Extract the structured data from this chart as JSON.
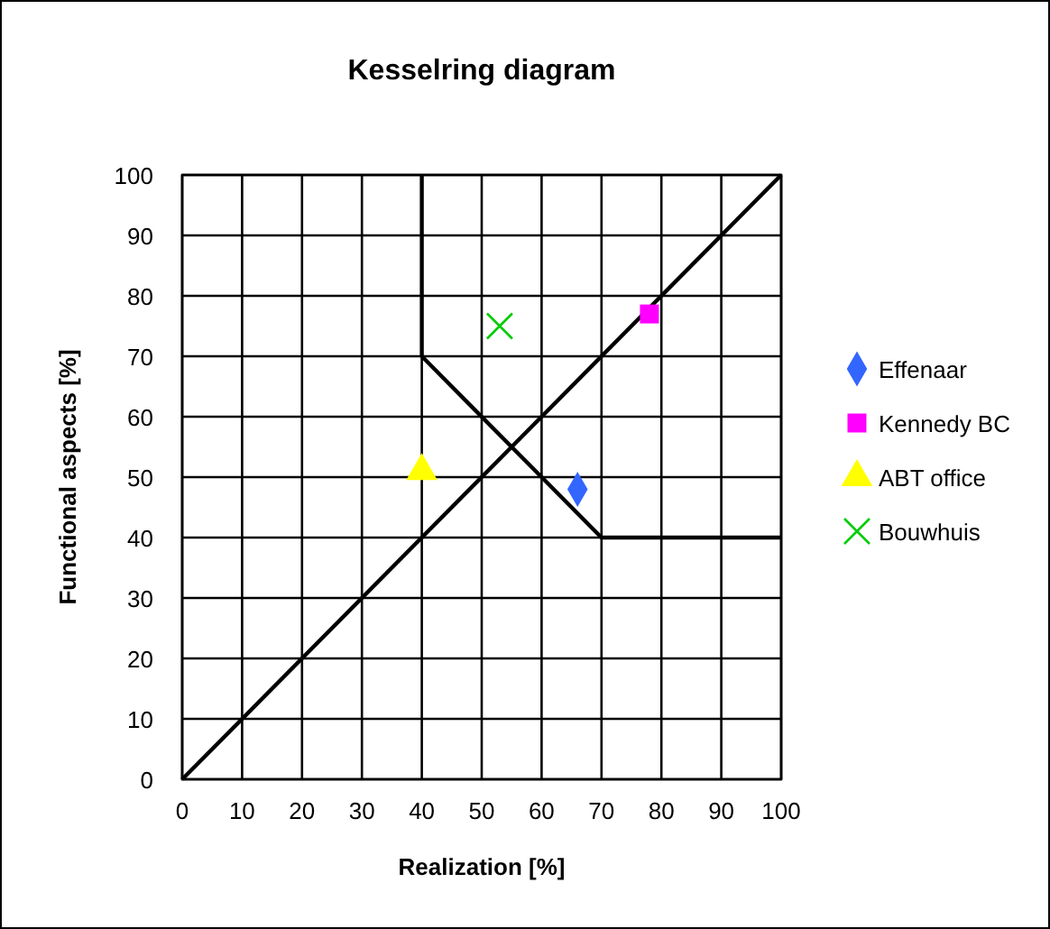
{
  "chart_data": {
    "type": "scatter",
    "title": "Kesselring diagram",
    "xlabel": "Realization [%]",
    "ylabel": "Functional aspects [%]",
    "xlim": [
      0,
      100
    ],
    "ylim": [
      0,
      100
    ],
    "xticks": [
      0,
      10,
      20,
      30,
      40,
      50,
      60,
      70,
      80,
      90,
      100
    ],
    "yticks": [
      0,
      10,
      20,
      30,
      40,
      50,
      60,
      70,
      80,
      90,
      100
    ],
    "grid": true,
    "legend": "right",
    "series": [
      {
        "type": "line",
        "color": "#000000",
        "x": [
          0,
          100
        ],
        "values": [
          0,
          100
        ],
        "marker": "none",
        "line_style": "solid"
      },
      {
        "type": "line",
        "color": "#000000",
        "x": [
          40,
          40,
          70,
          100
        ],
        "values": [
          100,
          70,
          40,
          40
        ],
        "marker": "none",
        "line_style": "solid"
      },
      {
        "name": "Effenaar",
        "color": "#3366ff",
        "x": [
          66
        ],
        "values": [
          48
        ],
        "marker": "diamond"
      },
      {
        "name": "Kennedy BC",
        "color": "#ff00ff",
        "x": [
          78
        ],
        "values": [
          77
        ],
        "marker": "square"
      },
      {
        "name": "ABT office",
        "color": "#ffff00",
        "x": [
          40
        ],
        "values": [
          51
        ],
        "marker": "triangle"
      },
      {
        "name": "Bouwhuis",
        "color": "#00cc00",
        "x": [
          53
        ],
        "values": [
          75
        ],
        "marker": "cross"
      }
    ]
  }
}
